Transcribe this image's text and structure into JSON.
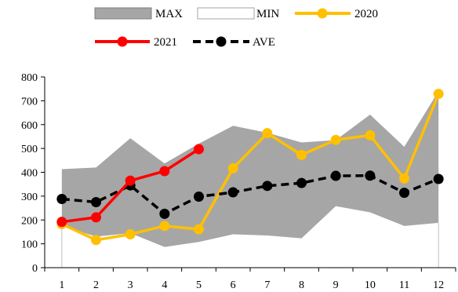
{
  "chart_data": {
    "type": "line",
    "title": "",
    "xlabel": "",
    "ylabel": "",
    "x": [
      1,
      2,
      3,
      4,
      5,
      6,
      7,
      8,
      9,
      10,
      11,
      12
    ],
    "xlim": [
      0.5,
      12.5
    ],
    "ylim": [
      0,
      800
    ],
    "yticks": [
      0,
      100,
      200,
      300,
      400,
      500,
      600,
      700,
      800
    ],
    "grid": false,
    "legend_position": "top-center",
    "band": {
      "max": {
        "name": "MAX",
        "values": [
          413,
          420,
          543,
          437,
          520,
          595,
          566,
          525,
          535,
          642,
          507,
          740
        ],
        "color": "#a6a6a6"
      },
      "min": {
        "name": "MIN",
        "values": [
          175,
          130,
          145,
          87,
          108,
          140,
          135,
          123,
          258,
          232,
          175,
          188
        ],
        "color": "#ffffff"
      }
    },
    "series": [
      {
        "name": "2020",
        "color": "#ffc000",
        "dash": "solid",
        "values": [
          183,
          116,
          140,
          175,
          161,
          417,
          564,
          473,
          536,
          555,
          374,
          729
        ]
      },
      {
        "name": "2021",
        "color": "#ff0000",
        "dash": "solid",
        "values": [
          192,
          211,
          365,
          405,
          497,
          null,
          null,
          null,
          null,
          null,
          null,
          null
        ]
      },
      {
        "name": "AVE",
        "color": "#000000",
        "dash": "dashed",
        "values": [
          288,
          275,
          345,
          226,
          298,
          316,
          343,
          355,
          385,
          386,
          314,
          372
        ]
      }
    ]
  }
}
